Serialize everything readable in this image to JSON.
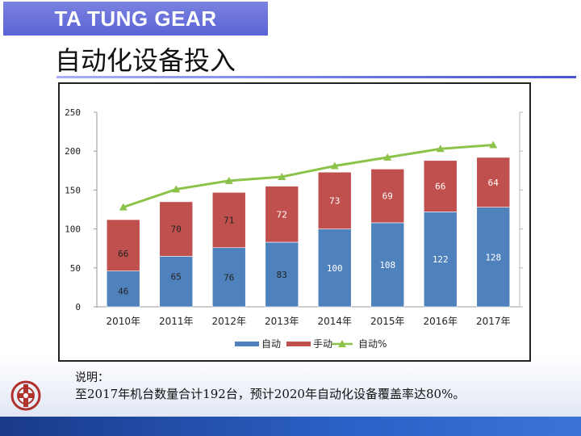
{
  "header": {
    "brand": "TA TUNG GEAR",
    "title": "自动化设备投入"
  },
  "colors": {
    "auto": "#4f81bd",
    "manual": "#c0504d",
    "ratio": "#8bc34a",
    "brand": "#5a63d6",
    "footer": "#2b61c6"
  },
  "chart_data": {
    "type": "bar",
    "stacked": true,
    "categories": [
      "2010年",
      "2011年",
      "2012年",
      "2013年",
      "2014年",
      "2015年",
      "2016年",
      "2017年"
    ],
    "series": [
      {
        "name": "自动",
        "kind": "bar",
        "values": [
          46,
          65,
          76,
          83,
          100,
          108,
          122,
          128
        ]
      },
      {
        "name": "手动",
        "kind": "bar",
        "values": [
          66,
          70,
          71,
          72,
          73,
          69,
          66,
          64
        ]
      },
      {
        "name": "自动%",
        "kind": "line",
        "values": [
          128,
          151,
          162,
          167,
          181,
          192,
          203,
          208
        ]
      }
    ],
    "y_ticks": [
      "0",
      "50",
      "100",
      "150",
      "200",
      "250"
    ],
    "ylim": [
      0,
      250
    ],
    "legend_position": "bottom",
    "grid": false,
    "title": "",
    "xlabel": "",
    "ylabel": ""
  },
  "note": {
    "label": "说明：",
    "text": "至2017年机台数量合计192台，预计2020年自动化设备覆盖率达80%。"
  }
}
